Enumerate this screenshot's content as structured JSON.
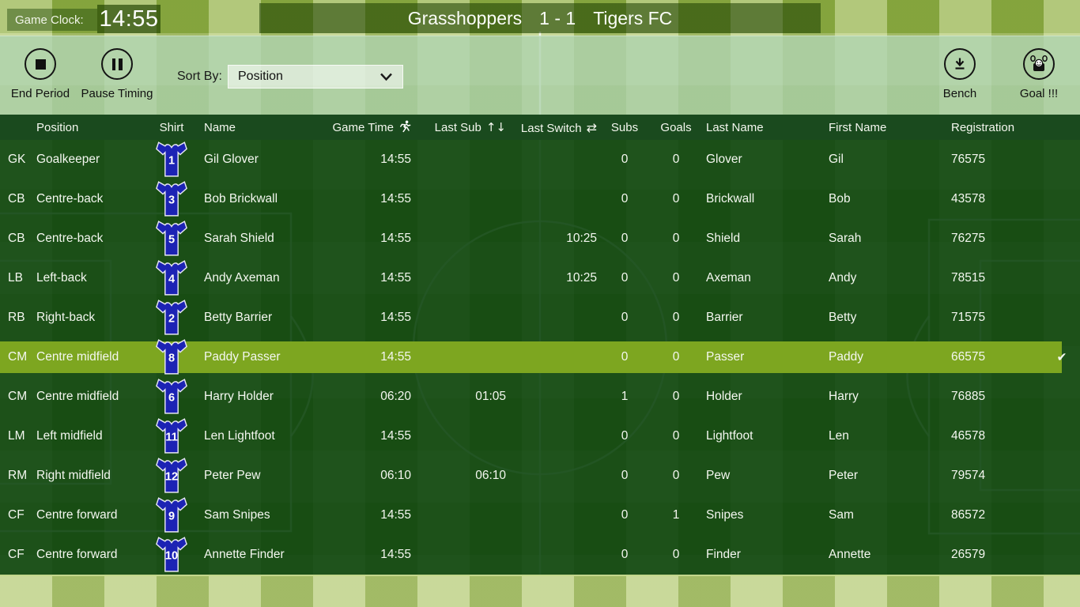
{
  "clock": {
    "label": "Game Clock:",
    "time": "14:55"
  },
  "scoreboard": {
    "home": "Grasshoppers",
    "score": "1 - 1",
    "away": "Tigers FC"
  },
  "toolbar": {
    "end_period": "End Period",
    "pause_timing": "Pause Timing",
    "sort_by_label": "Sort By:",
    "sort_value": "Position",
    "bench": "Bench",
    "goal": "Goal !!!"
  },
  "table": {
    "headers": {
      "position": "Position",
      "shirt": "Shirt",
      "name": "Name",
      "game_time": "Game Time",
      "last_sub": "Last Sub",
      "last_switch": "Last Switch",
      "subs": "Subs",
      "goals": "Goals",
      "last_name": "Last Name",
      "first_name": "First Name",
      "registration": "Registration"
    },
    "rows": [
      {
        "code": "GK",
        "position": "Goalkeeper",
        "shirt": "1",
        "name": "Gil Glover",
        "game_time": "14:55",
        "last_sub": "",
        "last_switch": "",
        "subs": "0",
        "goals": "0",
        "last_name": "Glover",
        "first_name": "Gil",
        "registration": "76575",
        "selected": false
      },
      {
        "code": "CB",
        "position": "Centre-back",
        "shirt": "3",
        "name": "Bob Brickwall",
        "game_time": "14:55",
        "last_sub": "",
        "last_switch": "",
        "subs": "0",
        "goals": "0",
        "last_name": "Brickwall",
        "first_name": "Bob",
        "registration": "43578",
        "selected": false
      },
      {
        "code": "CB",
        "position": "Centre-back",
        "shirt": "5",
        "name": "Sarah Shield",
        "game_time": "14:55",
        "last_sub": "",
        "last_switch": "10:25",
        "subs": "0",
        "goals": "0",
        "last_name": "Shield",
        "first_name": "Sarah",
        "registration": "76275",
        "selected": false
      },
      {
        "code": "LB",
        "position": "Left-back",
        "shirt": "4",
        "name": "Andy Axeman",
        "game_time": "14:55",
        "last_sub": "",
        "last_switch": "10:25",
        "subs": "0",
        "goals": "0",
        "last_name": "Axeman",
        "first_name": "Andy",
        "registration": "78515",
        "selected": false
      },
      {
        "code": "RB",
        "position": "Right-back",
        "shirt": "2",
        "name": "Betty Barrier",
        "game_time": "14:55",
        "last_sub": "",
        "last_switch": "",
        "subs": "0",
        "goals": "0",
        "last_name": "Barrier",
        "first_name": "Betty",
        "registration": "71575",
        "selected": false
      },
      {
        "code": "CM",
        "position": "Centre midfield",
        "shirt": "8",
        "name": "Paddy Passer",
        "game_time": "14:55",
        "last_sub": "",
        "last_switch": "",
        "subs": "0",
        "goals": "0",
        "last_name": "Passer",
        "first_name": "Paddy",
        "registration": "66575",
        "selected": true
      },
      {
        "code": "CM",
        "position": "Centre midfield",
        "shirt": "6",
        "name": "Harry Holder",
        "game_time": "06:20",
        "last_sub": "01:05",
        "last_switch": "",
        "subs": "1",
        "goals": "0",
        "last_name": "Holder",
        "first_name": "Harry",
        "registration": "76885",
        "selected": false
      },
      {
        "code": "LM",
        "position": "Left midfield",
        "shirt": "11",
        "name": "Len Lightfoot",
        "game_time": "14:55",
        "last_sub": "",
        "last_switch": "",
        "subs": "0",
        "goals": "0",
        "last_name": "Lightfoot",
        "first_name": "Len",
        "registration": "46578",
        "selected": false
      },
      {
        "code": "RM",
        "position": "Right midfield",
        "shirt": "12",
        "name": "Peter Pew",
        "game_time": "06:10",
        "last_sub": "06:10",
        "last_switch": "",
        "subs": "0",
        "goals": "0",
        "last_name": "Pew",
        "first_name": "Peter",
        "registration": "79574",
        "selected": false
      },
      {
        "code": "CF",
        "position": "Centre forward",
        "shirt": "9",
        "name": "Sam Snipes",
        "game_time": "14:55",
        "last_sub": "",
        "last_switch": "",
        "subs": "0",
        "goals": "1",
        "last_name": "Snipes",
        "first_name": "Sam",
        "registration": "86572",
        "selected": false
      },
      {
        "code": "CF",
        "position": "Centre forward",
        "shirt": "10",
        "name": "Annette Finder",
        "game_time": "14:55",
        "last_sub": "",
        "last_switch": "",
        "subs": "0",
        "goals": "0",
        "last_name": "Finder",
        "first_name": "Annette",
        "registration": "26579",
        "selected": false
      }
    ]
  },
  "icons": {
    "sort_sub_arrows": "↑↓",
    "switch_arrows": "⇄",
    "selected_check": "✔"
  },
  "colors": {
    "selected_row": "#7da620",
    "shirt_blue": "#1c23b4",
    "header_bar": "#1a4a1e",
    "table_overlay": "#1d5520",
    "pitch_light": "#c9da9c",
    "pitch_dark": "#83a33e"
  }
}
